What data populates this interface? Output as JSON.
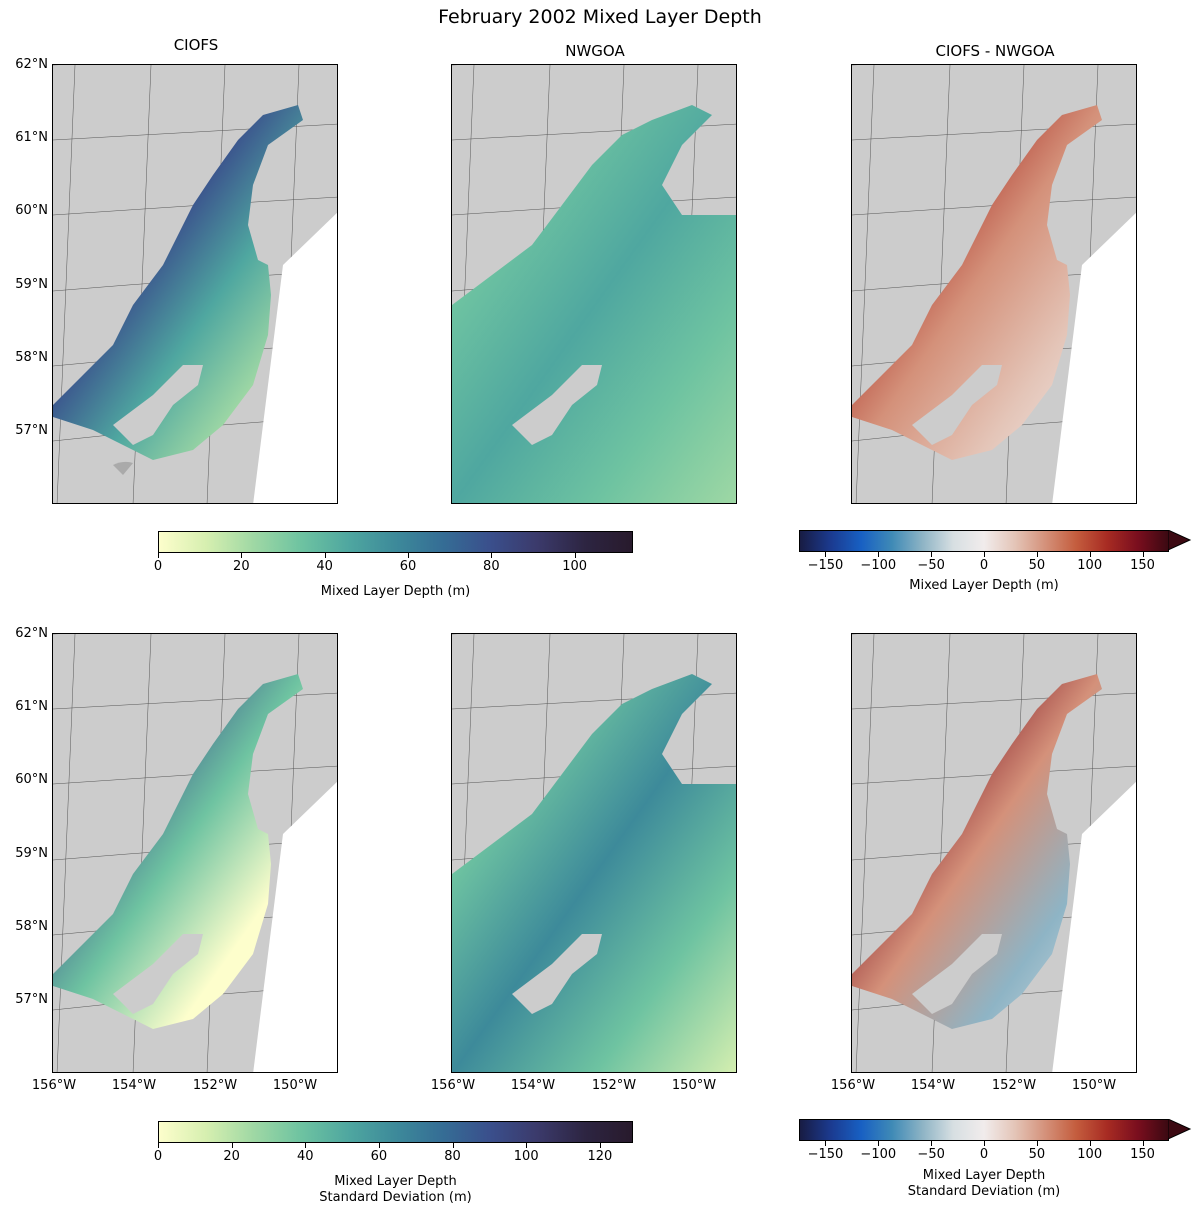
{
  "title": "February 2002 Mixed Layer Depth",
  "columns": [
    "CIOFS",
    "NWGOA",
    "CIOFS - NWGOA"
  ],
  "lat_ticks": [
    "62°N",
    "61°N",
    "60°N",
    "59°N",
    "58°N",
    "57°N"
  ],
  "lon_ticks": [
    "156°W",
    "154°W",
    "152°W",
    "150°W"
  ],
  "colorbars": [
    {
      "label": "Mixed Layer Depth (m)",
      "ticks": [
        "0",
        "20",
        "40",
        "60",
        "80",
        "100"
      ],
      "values": [
        0,
        20,
        40,
        60,
        80,
        100
      ],
      "range": [
        0,
        114
      ],
      "cmap": "deep",
      "extend": "none"
    },
    {
      "label": "Mixed Layer Depth (m)",
      "ticks": [
        "−150",
        "−100",
        "−50",
        "0",
        "50",
        "100",
        "150"
      ],
      "values": [
        -150,
        -100,
        -50,
        0,
        50,
        100,
        150
      ],
      "range": [
        -175,
        175
      ],
      "cmap": "balance",
      "extend": "max"
    },
    {
      "label": "Mixed Layer Depth\nStandard Deviation (m)",
      "ticks": [
        "0",
        "20",
        "40",
        "60",
        "80",
        "100",
        "120"
      ],
      "values": [
        0,
        20,
        40,
        60,
        80,
        100,
        120
      ],
      "range": [
        0,
        129
      ],
      "cmap": "deep",
      "extend": "none"
    },
    {
      "label": "Mixed Layer Depth\nStandard Deviation (m)",
      "ticks": [
        "−150",
        "−100",
        "−50",
        "0",
        "50",
        "100",
        "150"
      ],
      "values": [
        -150,
        -100,
        -50,
        0,
        50,
        100,
        150
      ],
      "range": [
        -175,
        175
      ],
      "cmap": "balance",
      "extend": "max"
    }
  ],
  "chart_data": {
    "type": "heatmap",
    "title": "February 2002 Mixed Layer Depth",
    "extent": {
      "lon": [
        -156,
        -149
      ],
      "lat": [
        56,
        62
      ]
    },
    "rows": [
      {
        "variable": "Mixed Layer Depth (m)",
        "panels": [
          "CIOFS",
          "NWGOA",
          "CIOFS - NWGOA"
        ]
      },
      {
        "variable": "Mixed Layer Depth Standard Deviation (m)",
        "panels": [
          "CIOFS",
          "NWGOA",
          "CIOFS - NWGOA"
        ]
      }
    ],
    "colors": {
      "land": "#cccccc",
      "deep_low": "#fdfecc",
      "deep_mid": "#5fb59e",
      "deep_high": "#281a2c",
      "balance_low": "#181c43",
      "balance_mid": "#f1ecec",
      "balance_high": "#3c0912"
    }
  }
}
